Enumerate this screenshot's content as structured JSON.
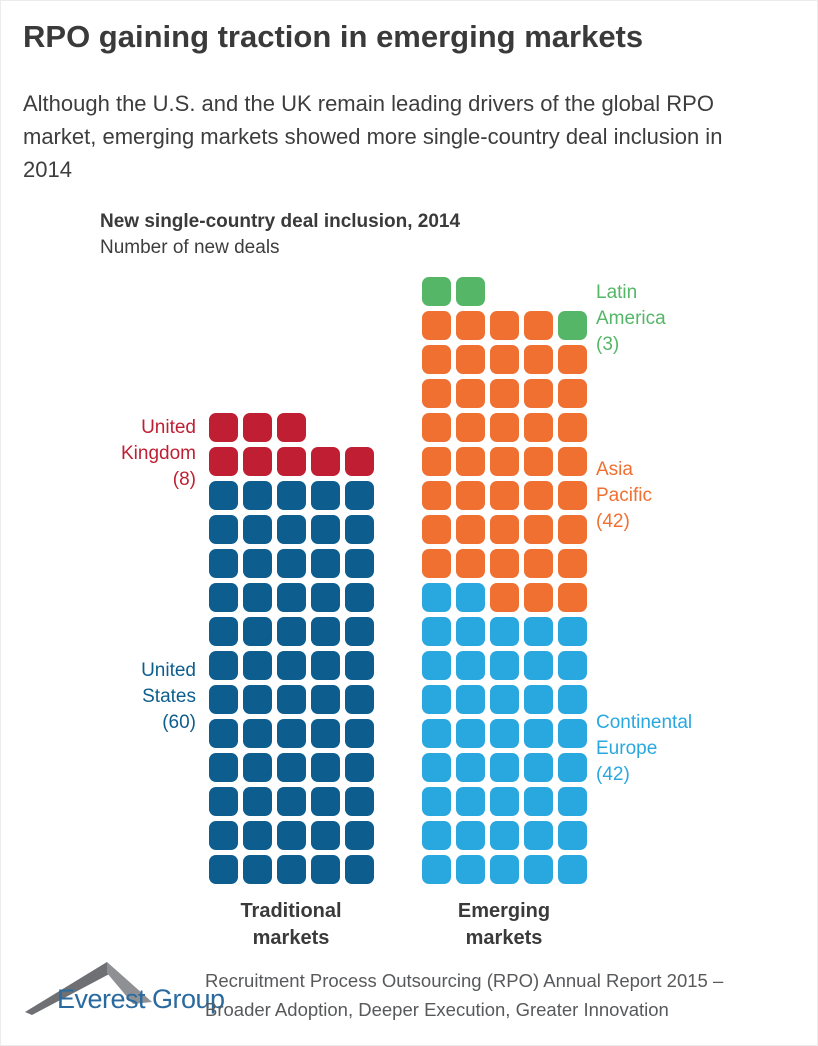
{
  "header": {
    "title": "RPO gaining traction in emerging markets",
    "subtitle": "Although the U.S. and the UK remain leading drivers of the global RPO market, emerging markets showed more single-country deal inclusion in 2014"
  },
  "chart_data": {
    "type": "waffle",
    "title": "New single-country deal inclusion, 2014",
    "subtitle": "Number of new deals",
    "squares_per_row": 5,
    "columns": [
      {
        "name": "Traditional markets",
        "name_lines": [
          "Traditional",
          "markets"
        ],
        "segments": [
          {
            "label": "United Kingdom",
            "value": 8,
            "color": "#c01f33",
            "label_lines": [
              "United",
              "Kingdom",
              "(8)"
            ]
          },
          {
            "label": "United States",
            "value": 60,
            "color": "#0d5e8e",
            "label_lines": [
              "United",
              "States",
              "(60)"
            ]
          }
        ]
      },
      {
        "name": "Emerging markets",
        "name_lines": [
          "Emerging",
          "markets"
        ],
        "segments": [
          {
            "label": "Latin America",
            "value": 3,
            "color": "#55b667",
            "label_lines": [
              "Latin",
              "America",
              "(3)"
            ]
          },
          {
            "label": "Asia Pacific",
            "value": 42,
            "color": "#f07031",
            "label_lines": [
              "Asia",
              "Pacific",
              "(42)"
            ]
          },
          {
            "label": "Continental Europe",
            "value": 42,
            "color": "#29a8e0",
            "label_lines": [
              "Continental",
              "Europe",
              "(42)"
            ]
          }
        ]
      }
    ]
  },
  "footer": {
    "brand": "Everest Group",
    "report_line1": "Recruitment Process Outsourcing (RPO) Annual Report 2015 –",
    "report_line2": "Broader Adoption, Deeper Execution, Greater Innovation"
  }
}
